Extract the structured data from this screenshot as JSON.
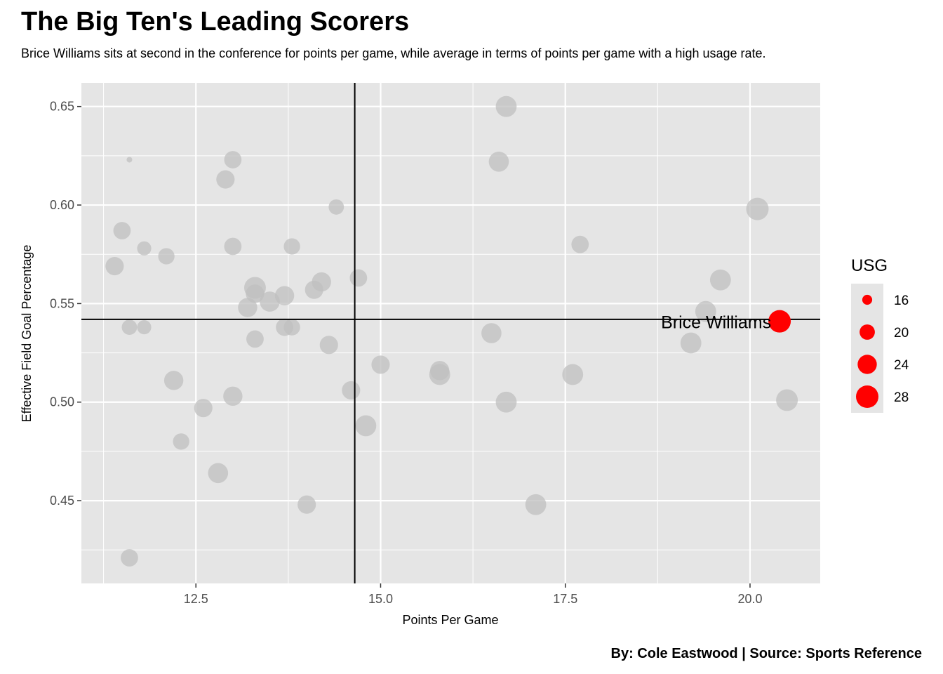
{
  "chart_data": {
    "type": "scatter",
    "title": "The Big Ten's Leading Scorers",
    "subtitle": "Brice Williams sits at second in the conference for points per game, while average in terms of points per game with a high usage rate.",
    "caption": "By: Cole Eastwood | Source: Sports Reference",
    "xlabel": "Points Per Game",
    "ylabel": "Effective Field Goal Percentage",
    "xlim": [
      10.95,
      20.95
    ],
    "ylim": [
      0.408,
      0.662
    ],
    "x_ticks": [
      12.5,
      15.0,
      17.5,
      20.0
    ],
    "x_tick_labels": [
      "12.5",
      "15.0",
      "17.5",
      "20.0"
    ],
    "y_ticks": [
      0.45,
      0.5,
      0.55,
      0.6,
      0.65
    ],
    "y_tick_labels": [
      "0.45",
      "0.50",
      "0.55",
      "0.60",
      "0.65"
    ],
    "vline_x": 14.65,
    "hline_y": 0.542,
    "grid": true,
    "colors": {
      "panel": "#e5e5e5",
      "grid": "#ffffff",
      "point": "#bfbfbf",
      "highlight": "#ff0000",
      "refline": "#000000"
    },
    "legend": {
      "title": "USG",
      "placement": "right",
      "entries": [
        {
          "label": "16",
          "value": 16
        },
        {
          "label": "20",
          "value": 20
        },
        {
          "label": "24",
          "value": 24
        },
        {
          "label": "28",
          "value": 28
        }
      ]
    },
    "size_range": [
      13,
      30
    ],
    "points": [
      {
        "x": 16.7,
        "y": 0.65,
        "usg": 26
      },
      {
        "x": 16.6,
        "y": 0.622,
        "usg": 25
      },
      {
        "x": 11.6,
        "y": 0.623,
        "usg": 13
      },
      {
        "x": 13.0,
        "y": 0.623,
        "usg": 22
      },
      {
        "x": 12.9,
        "y": 0.613,
        "usg": 23
      },
      {
        "x": 14.4,
        "y": 0.599,
        "usg": 20
      },
      {
        "x": 20.1,
        "y": 0.598,
        "usg": 28
      },
      {
        "x": 11.5,
        "y": 0.587,
        "usg": 22
      },
      {
        "x": 17.7,
        "y": 0.58,
        "usg": 22
      },
      {
        "x": 11.8,
        "y": 0.578,
        "usg": 19
      },
      {
        "x": 13.0,
        "y": 0.579,
        "usg": 22
      },
      {
        "x": 13.8,
        "y": 0.579,
        "usg": 21
      },
      {
        "x": 12.1,
        "y": 0.574,
        "usg": 21
      },
      {
        "x": 11.4,
        "y": 0.569,
        "usg": 23
      },
      {
        "x": 14.7,
        "y": 0.563,
        "usg": 22
      },
      {
        "x": 19.6,
        "y": 0.562,
        "usg": 26
      },
      {
        "x": 14.2,
        "y": 0.561,
        "usg": 24
      },
      {
        "x": 13.3,
        "y": 0.558,
        "usg": 27
      },
      {
        "x": 14.1,
        "y": 0.557,
        "usg": 23
      },
      {
        "x": 13.3,
        "y": 0.555,
        "usg": 23
      },
      {
        "x": 13.7,
        "y": 0.554,
        "usg": 24
      },
      {
        "x": 13.5,
        "y": 0.551,
        "usg": 25
      },
      {
        "x": 13.2,
        "y": 0.548,
        "usg": 24
      },
      {
        "x": 19.4,
        "y": 0.546,
        "usg": 26
      },
      {
        "x": 11.6,
        "y": 0.538,
        "usg": 20
      },
      {
        "x": 11.8,
        "y": 0.538,
        "usg": 19
      },
      {
        "x": 13.7,
        "y": 0.538,
        "usg": 22
      },
      {
        "x": 13.8,
        "y": 0.538,
        "usg": 21
      },
      {
        "x": 16.5,
        "y": 0.535,
        "usg": 25
      },
      {
        "x": 13.3,
        "y": 0.532,
        "usg": 22
      },
      {
        "x": 19.2,
        "y": 0.53,
        "usg": 26
      },
      {
        "x": 14.3,
        "y": 0.529,
        "usg": 23
      },
      {
        "x": 15.0,
        "y": 0.519,
        "usg": 23
      },
      {
        "x": 15.8,
        "y": 0.516,
        "usg": 24
      },
      {
        "x": 15.8,
        "y": 0.514,
        "usg": 26
      },
      {
        "x": 17.6,
        "y": 0.514,
        "usg": 26
      },
      {
        "x": 12.2,
        "y": 0.511,
        "usg": 24
      },
      {
        "x": 14.6,
        "y": 0.506,
        "usg": 23
      },
      {
        "x": 13.0,
        "y": 0.503,
        "usg": 24
      },
      {
        "x": 20.5,
        "y": 0.501,
        "usg": 27
      },
      {
        "x": 16.7,
        "y": 0.5,
        "usg": 26
      },
      {
        "x": 12.6,
        "y": 0.497,
        "usg": 23
      },
      {
        "x": 14.8,
        "y": 0.488,
        "usg": 26
      },
      {
        "x": 12.3,
        "y": 0.48,
        "usg": 21
      },
      {
        "x": 12.8,
        "y": 0.464,
        "usg": 25
      },
      {
        "x": 14.0,
        "y": 0.448,
        "usg": 23
      },
      {
        "x": 17.1,
        "y": 0.448,
        "usg": 26
      },
      {
        "x": 11.6,
        "y": 0.421,
        "usg": 22
      }
    ],
    "highlight": {
      "label": "Brice Williams",
      "x": 20.4,
      "y": 0.541,
      "usg": 28
    }
  }
}
